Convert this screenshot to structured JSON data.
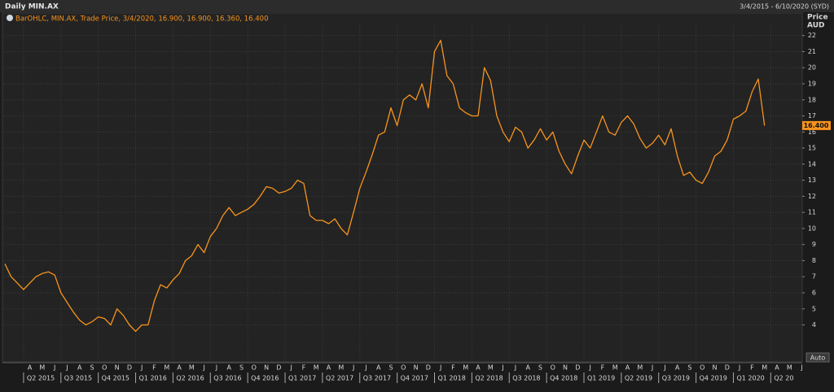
{
  "header": {
    "title": "Daily MIN.AX",
    "range": "3/4/2015 - 6/10/2020 (SYD)"
  },
  "chart_data": {
    "type": "line",
    "legend": "BarOHLC, MIN.AX, Trade Price, 3/4/2020, 16.900, 16.900, 16.360, 16.400",
    "y_axis_title": "Price",
    "y_axis_unit": "AUD",
    "color": "#f7941d",
    "grid": true,
    "ylim": [
      1.7,
      23.4
    ],
    "yticks": [
      4,
      5,
      6,
      7,
      8,
      9,
      10,
      11,
      12,
      13,
      14,
      15,
      16,
      17,
      18,
      19,
      20,
      21,
      22
    ],
    "last_price": {
      "value": 16.4,
      "label": "16.400"
    },
    "button": "Auto",
    "categories": [
      null,
      null,
      null,
      null,
      "A",
      null,
      "M",
      null,
      "J",
      null,
      "J",
      null,
      "A",
      null,
      "S",
      null,
      "O",
      null,
      "N",
      null,
      "D",
      null,
      "J",
      null,
      "F",
      null,
      "M",
      null,
      "A",
      null,
      "M",
      null,
      "J",
      null,
      "J",
      null,
      "A",
      null,
      "S",
      null,
      "O",
      null,
      "N",
      null,
      "D",
      null,
      "J",
      null,
      "F",
      null,
      "M",
      null,
      "A",
      null,
      "M",
      null,
      "J",
      null,
      "J",
      null,
      "A",
      null,
      "S",
      null,
      "O",
      null,
      "N",
      null,
      "D",
      null,
      "J",
      null,
      "F",
      null,
      "M",
      null,
      "A",
      null,
      "M",
      null,
      "J",
      null,
      "J",
      null,
      "A",
      null,
      "S",
      null,
      "O",
      null,
      "N",
      null,
      "D",
      null,
      "J",
      null,
      "F",
      null,
      "M",
      null,
      "A",
      null,
      "M",
      null,
      "J",
      null,
      "J",
      null,
      "A",
      null,
      "S",
      null,
      "O",
      null,
      "N",
      null,
      "D",
      null,
      "J",
      null,
      "F",
      null,
      "M",
      null,
      "A",
      null,
      "M",
      null,
      "J"
    ],
    "values": [
      7.8,
      7.0,
      6.6,
      6.2,
      6.6,
      7.0,
      7.2,
      7.3,
      7.1,
      6.0,
      5.4,
      4.8,
      4.3,
      4.0,
      4.2,
      4.5,
      4.4,
      4.0,
      5.0,
      4.6,
      4.0,
      3.6,
      4.0,
      4.0,
      5.5,
      6.5,
      6.3,
      6.8,
      7.2,
      8.0,
      8.3,
      9.0,
      8.5,
      9.5,
      10.0,
      10.8,
      11.3,
      10.8,
      11.0,
      11.2,
      11.5,
      12.0,
      12.6,
      12.5,
      12.2,
      12.3,
      12.5,
      13.0,
      12.8,
      10.8,
      10.5,
      10.5,
      10.3,
      10.6,
      10.0,
      9.6,
      11.0,
      12.5,
      13.5,
      14.6,
      15.8,
      16.0,
      17.5,
      16.4,
      18.0,
      18.3,
      18.0,
      19.0,
      17.5,
      21.0,
      21.7,
      19.5,
      19.0,
      17.5,
      17.2,
      17.0,
      17.0,
      20.0,
      19.2,
      17.0,
      16.0,
      15.4,
      16.3,
      16.0,
      15.0,
      15.5,
      16.2,
      15.5,
      16.0,
      14.8,
      14.0,
      13.4,
      14.5,
      15.5,
      15.0,
      16.0,
      17.0,
      16.0,
      15.8,
      16.6,
      17.0,
      16.5,
      15.6,
      15.0,
      15.3,
      15.8,
      15.2,
      16.2,
      14.5,
      13.3,
      13.5,
      13.0,
      12.8,
      13.5,
      14.5,
      14.8,
      15.5,
      16.8,
      17.0,
      17.3,
      18.5,
      19.3,
      16.4,
      null,
      null,
      null,
      null,
      null,
      null
    ],
    "quarter_labels": [
      "Q2 2015",
      "Q3 2015",
      "Q4 2015",
      "Q1 2016",
      "Q2 2016",
      "Q3 2016",
      "Q4 2016",
      "Q1 2017",
      "Q2 2017",
      "Q3 2017",
      "Q4 2017",
      "Q1 2018",
      "Q2 2018",
      "Q3 2018",
      "Q4 2018",
      "Q1 2019",
      "Q2 2019",
      "Q3 2019",
      "Q4 2019",
      "Q1 2020",
      "Q2 20"
    ]
  }
}
